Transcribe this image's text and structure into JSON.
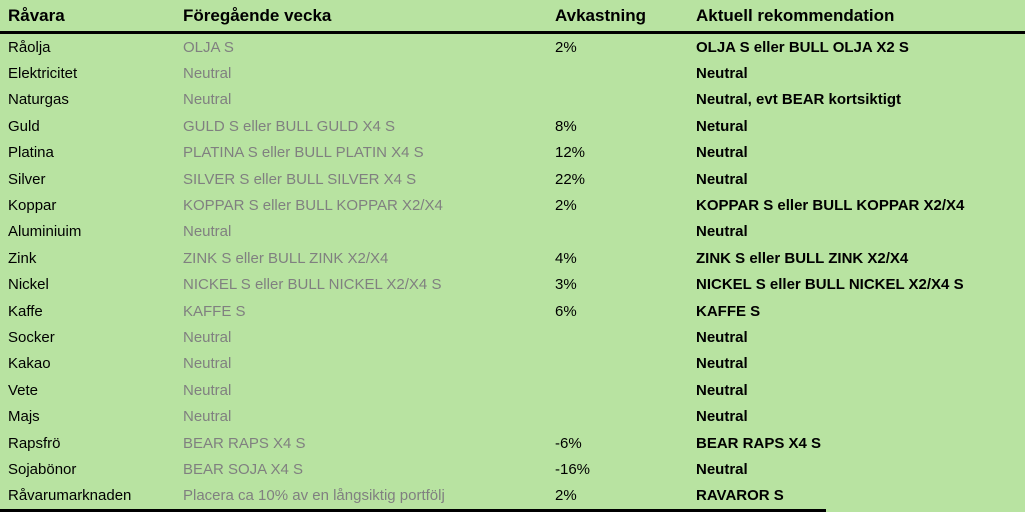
{
  "colors": {
    "table_background": "#b8e3a1",
    "muted_text": "#808080",
    "text": "#000000",
    "border": "#000000"
  },
  "table": {
    "columns": [
      {
        "key": "ravara",
        "label": "Råvara"
      },
      {
        "key": "foregaende",
        "label": "Föregående vecka"
      },
      {
        "key": "avkastning",
        "label": "Avkastning"
      },
      {
        "key": "rekommendation",
        "label": "Aktuell rekommendation"
      }
    ],
    "rows": [
      {
        "ravara": "Råolja",
        "foregaende": "OLJA S",
        "avkastning": "2%",
        "rekommendation": "OLJA S eller BULL OLJA X2 S"
      },
      {
        "ravara": "Elektricitet",
        "foregaende": "Neutral",
        "avkastning": "",
        "rekommendation": "Neutral"
      },
      {
        "ravara": "Naturgas",
        "foregaende": "Neutral",
        "avkastning": "",
        "rekommendation": "Neutral, evt BEAR kortsiktigt"
      },
      {
        "ravara": "Guld",
        "foregaende": "GULD S eller BULL GULD X4 S",
        "avkastning": "8%",
        "rekommendation": "Netural"
      },
      {
        "ravara": "Platina",
        "foregaende": "PLATINA S eller BULL PLATIN X4 S",
        "avkastning": "12%",
        "rekommendation": "Neutral"
      },
      {
        "ravara": "Silver",
        "foregaende": "SILVER S eller BULL SILVER X4 S",
        "avkastning": "22%",
        "rekommendation": "Neutral"
      },
      {
        "ravara": "Koppar",
        "foregaende": "KOPPAR S eller BULL KOPPAR X2/X4",
        "avkastning": "2%",
        "rekommendation": "KOPPAR S eller BULL KOPPAR X2/X4"
      },
      {
        "ravara": "Aluminiuim",
        "foregaende": "Neutral",
        "avkastning": "",
        "rekommendation": "Neutral"
      },
      {
        "ravara": "Zink",
        "foregaende": "ZINK S eller BULL ZINK X2/X4",
        "avkastning": "4%",
        "rekommendation": "ZINK S eller BULL ZINK X2/X4"
      },
      {
        "ravara": "Nickel",
        "foregaende": "NICKEL S eller BULL NICKEL X2/X4 S",
        "avkastning": "3%",
        "rekommendation": "NICKEL S eller BULL NICKEL X2/X4 S"
      },
      {
        "ravara": "Kaffe",
        "foregaende": "KAFFE S",
        "avkastning": "6%",
        "rekommendation": "KAFFE S"
      },
      {
        "ravara": "Socker",
        "foregaende": "Neutral",
        "avkastning": "",
        "rekommendation": "Neutral"
      },
      {
        "ravara": "Kakao",
        "foregaende": "Neutral",
        "avkastning": "",
        "rekommendation": "Neutral"
      },
      {
        "ravara": "Vete",
        "foregaende": "Neutral",
        "avkastning": "",
        "rekommendation": "Neutral"
      },
      {
        "ravara": "Majs",
        "foregaende": "Neutral",
        "avkastning": "",
        "rekommendation": "Neutral"
      },
      {
        "ravara": "Rapsfrö",
        "foregaende": "BEAR RAPS X4 S",
        "avkastning": "-6%",
        "rekommendation": "BEAR RAPS X4 S"
      },
      {
        "ravara": "Sojabönor",
        "foregaende": "BEAR SOJA X4 S",
        "avkastning": "-16%",
        "rekommendation": "Neutral"
      },
      {
        "ravara": "Råvarumarknaden",
        "foregaende": "Placera ca 10% av en långsiktig portfölj",
        "avkastning": "2%",
        "rekommendation": "RAVAROR S"
      }
    ]
  }
}
